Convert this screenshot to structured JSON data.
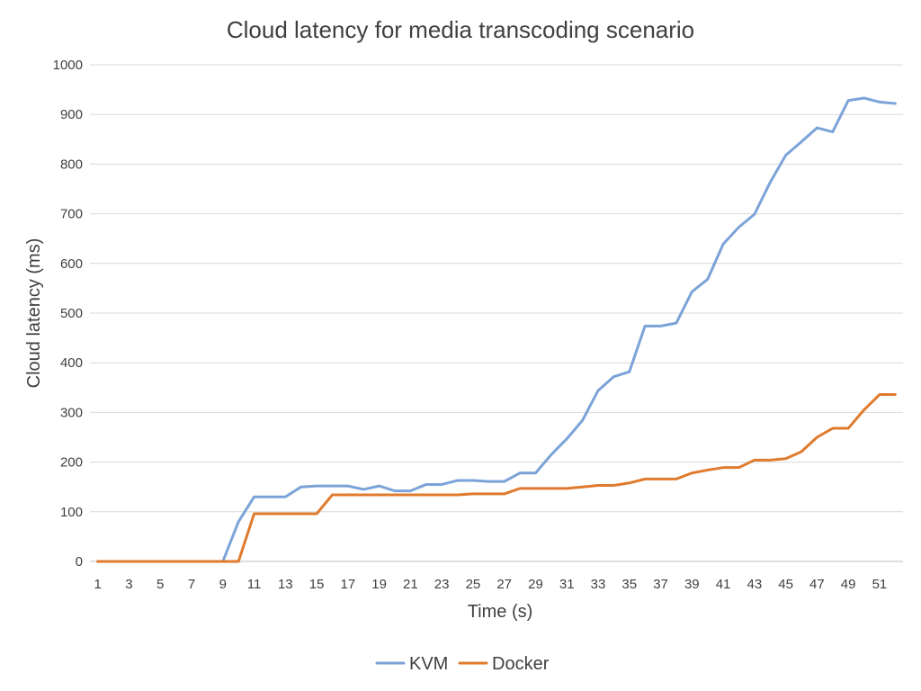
{
  "chart_data": {
    "type": "line",
    "title": "Cloud latency for media transcoding scenario",
    "xlabel": "Time (s)",
    "ylabel": "Cloud latency (ms)",
    "ylim": [
      0,
      1000
    ],
    "yticks": [
      "0",
      "100",
      "200",
      "300",
      "400",
      "500",
      "600",
      "700",
      "800",
      "900",
      "1000"
    ],
    "x": [
      1,
      2,
      3,
      4,
      5,
      6,
      7,
      8,
      9,
      10,
      11,
      12,
      13,
      14,
      15,
      16,
      17,
      18,
      19,
      20,
      21,
      22,
      23,
      24,
      25,
      26,
      27,
      28,
      29,
      30,
      31,
      32,
      33,
      34,
      35,
      36,
      37,
      38,
      39,
      40,
      41,
      42,
      43,
      44,
      45,
      46,
      47,
      48,
      49,
      50,
      51,
      52
    ],
    "xtick_labels": [
      "1",
      "3",
      "5",
      "7",
      "9",
      "11",
      "13",
      "15",
      "17",
      "19",
      "21",
      "23",
      "25",
      "27",
      "29",
      "31",
      "33",
      "35",
      "37",
      "39",
      "41",
      "43",
      "45",
      "47",
      "49",
      "51"
    ],
    "grid": true,
    "legend_position": "bottom",
    "series": [
      {
        "name": "KVM",
        "color": "#7ba3d8",
        "values": [
          0,
          0,
          0,
          0,
          0,
          0,
          0,
          0,
          0,
          80,
          130,
          130,
          130,
          150,
          152,
          152,
          152,
          145,
          152,
          142,
          142,
          155,
          155,
          163,
          163,
          161,
          161,
          178,
          178,
          215,
          247,
          284,
          344,
          372,
          382,
          474,
          474,
          480,
          543,
          568,
          639,
          673,
          699,
          763,
          818,
          845,
          873,
          865,
          928,
          933,
          925,
          922
        ]
      },
      {
        "name": "Docker",
        "color": "#e07b2e",
        "values": [
          0,
          0,
          0,
          0,
          0,
          0,
          0,
          0,
          0,
          0,
          96,
          96,
          96,
          96,
          96,
          134,
          134,
          134,
          134,
          134,
          134,
          134,
          134,
          134,
          136,
          136,
          136,
          147,
          147,
          147,
          147,
          150,
          153,
          153,
          158,
          166,
          166,
          166,
          178,
          184,
          189,
          189,
          204,
          204,
          207,
          221,
          250,
          268,
          268,
          305,
          336,
          336
        ]
      }
    ]
  }
}
